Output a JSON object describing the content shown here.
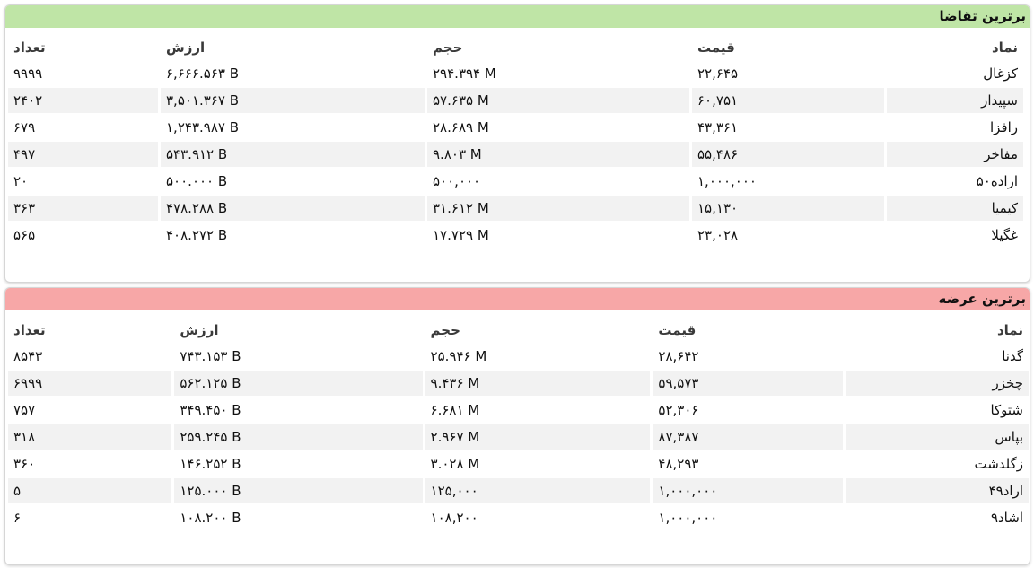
{
  "demand": {
    "title": "برترین تقاضا",
    "columns": {
      "symbol": "نماد",
      "price": "قیمت",
      "volume": "حجم",
      "value": "ارزش",
      "count": "تعداد"
    },
    "rows": [
      {
        "symbol": "کزغال",
        "price": "۲۲,۶۴۵",
        "volume": "۲۹۴.۳۹۴ M",
        "value": "۶,۶۶۶.۵۶۳ B",
        "count": "۹۹۹۹"
      },
      {
        "symbol": "سپیدار",
        "price": "۶۰,۷۵۱",
        "volume": "۵۷.۶۳۵ M",
        "value": "۳,۵۰۱.۳۶۷ B",
        "count": "۲۴۰۲"
      },
      {
        "symbol": "رافزا",
        "price": "۴۳,۳۶۱",
        "volume": "۲۸.۶۸۹ M",
        "value": "۱,۲۴۳.۹۸۷ B",
        "count": "۶۷۹"
      },
      {
        "symbol": "مفاخر",
        "price": "۵۵,۴۸۶",
        "volume": "۹.۸۰۳ M",
        "value": "۵۴۳.۹۱۲ B",
        "count": "۴۹۷"
      },
      {
        "symbol": "اراده۵۰",
        "price": "۱,۰۰۰,۰۰۰",
        "volume": "۵۰۰,۰۰۰",
        "value": "۵۰۰.۰۰۰ B",
        "count": "۲۰"
      },
      {
        "symbol": "کیمیا",
        "price": "۱۵,۱۳۰",
        "volume": "۳۱.۶۱۲ M",
        "value": "۴۷۸.۲۸۸ B",
        "count": "۳۶۳"
      },
      {
        "symbol": "غگیلا",
        "price": "۲۳,۰۲۸",
        "volume": "۱۷.۷۲۹ M",
        "value": "۴۰۸.۲۷۲ B",
        "count": "۵۶۵"
      }
    ]
  },
  "supply": {
    "title": "برترین عرضه",
    "columns": {
      "symbol": "نماد",
      "price": "قیمت",
      "volume": "حجم",
      "value": "ارزش",
      "count": "تعداد"
    },
    "rows": [
      {
        "symbol": "گدنا",
        "price": "۲۸,۶۴۲",
        "volume": "۲۵.۹۴۶ M",
        "value": "۷۴۳.۱۵۳ B",
        "count": "۸۵۴۳"
      },
      {
        "symbol": "چخزر",
        "price": "۵۹,۵۷۳",
        "volume": "۹.۴۳۶ M",
        "value": "۵۶۲.۱۲۵ B",
        "count": "۶۹۹۹"
      },
      {
        "symbol": "شتوکا",
        "price": "۵۲,۳۰۶",
        "volume": "۶.۶۸۱ M",
        "value": "۳۴۹.۴۵۰ B",
        "count": "۷۵۷"
      },
      {
        "symbol": "بپاس",
        "price": "۸۷,۳۸۷",
        "volume": "۲.۹۶۷ M",
        "value": "۲۵۹.۲۴۵ B",
        "count": "۳۱۸"
      },
      {
        "symbol": "زگلدشت",
        "price": "۴۸,۲۹۳",
        "volume": "۳.۰۲۸ M",
        "value": "۱۴۶.۲۵۲ B",
        "count": "۳۶۰"
      },
      {
        "symbol": "اراد۴۹",
        "price": "۱,۰۰۰,۰۰۰",
        "volume": "۱۲۵,۰۰۰",
        "value": "۱۲۵.۰۰۰ B",
        "count": "۵"
      },
      {
        "symbol": "اشاد۹",
        "price": "۱,۰۰۰,۰۰۰",
        "volume": "۱۰۸,۲۰۰",
        "value": "۱۰۸.۲۰۰ B",
        "count": "۶"
      }
    ]
  }
}
